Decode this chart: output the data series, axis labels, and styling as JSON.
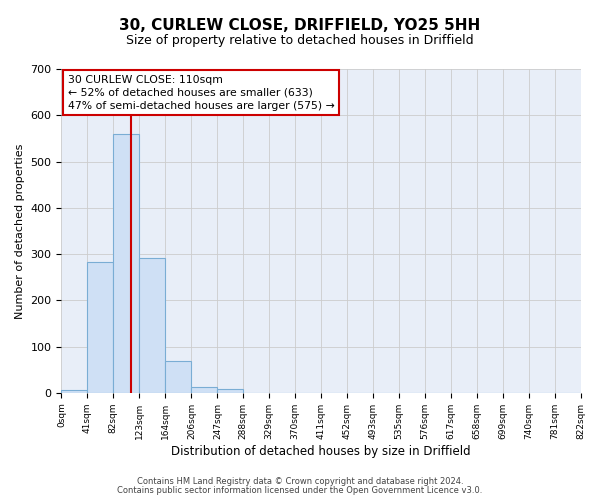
{
  "title": "30, CURLEW CLOSE, DRIFFIELD, YO25 5HH",
  "subtitle": "Size of property relative to detached houses in Driffield",
  "xlabel": "Distribution of detached houses by size in Driffield",
  "ylabel": "Number of detached properties",
  "bin_edges": [
    0,
    41,
    82,
    123,
    164,
    206,
    247,
    288,
    329,
    370,
    411,
    452,
    493,
    535,
    576,
    617,
    658,
    699,
    740,
    781,
    822
  ],
  "bar_heights": [
    7,
    282,
    560,
    292,
    68,
    13,
    8,
    0,
    0,
    0,
    0,
    0,
    0,
    0,
    0,
    0,
    0,
    0,
    0,
    0
  ],
  "bar_color": "#cfe0f5",
  "bar_edge_color": "#7aadd4",
  "grid_color": "#cccccc",
  "title_bg_color": "#ffffff",
  "plot_bg_color": "#e8eef8",
  "fig_bg_color": "#ffffff",
  "vline_x": 110,
  "vline_color": "#cc0000",
  "annotation_line1": "30 CURLEW CLOSE: 110sqm",
  "annotation_line2": "← 52% of detached houses are smaller (633)",
  "annotation_line3": "47% of semi-detached houses are larger (575) →",
  "annotation_box_color": "#ffffff",
  "annotation_box_edge": "#cc0000",
  "ylim": [
    0,
    700
  ],
  "yticks": [
    0,
    100,
    200,
    300,
    400,
    500,
    600,
    700
  ],
  "tick_labels": [
    "0sqm",
    "41sqm",
    "82sqm",
    "123sqm",
    "164sqm",
    "206sqm",
    "247sqm",
    "288sqm",
    "329sqm",
    "370sqm",
    "411sqm",
    "452sqm",
    "493sqm",
    "535sqm",
    "576sqm",
    "617sqm",
    "658sqm",
    "699sqm",
    "740sqm",
    "781sqm",
    "822sqm"
  ],
  "footer_line1": "Contains HM Land Registry data © Crown copyright and database right 2024.",
  "footer_line2": "Contains public sector information licensed under the Open Government Licence v3.0."
}
